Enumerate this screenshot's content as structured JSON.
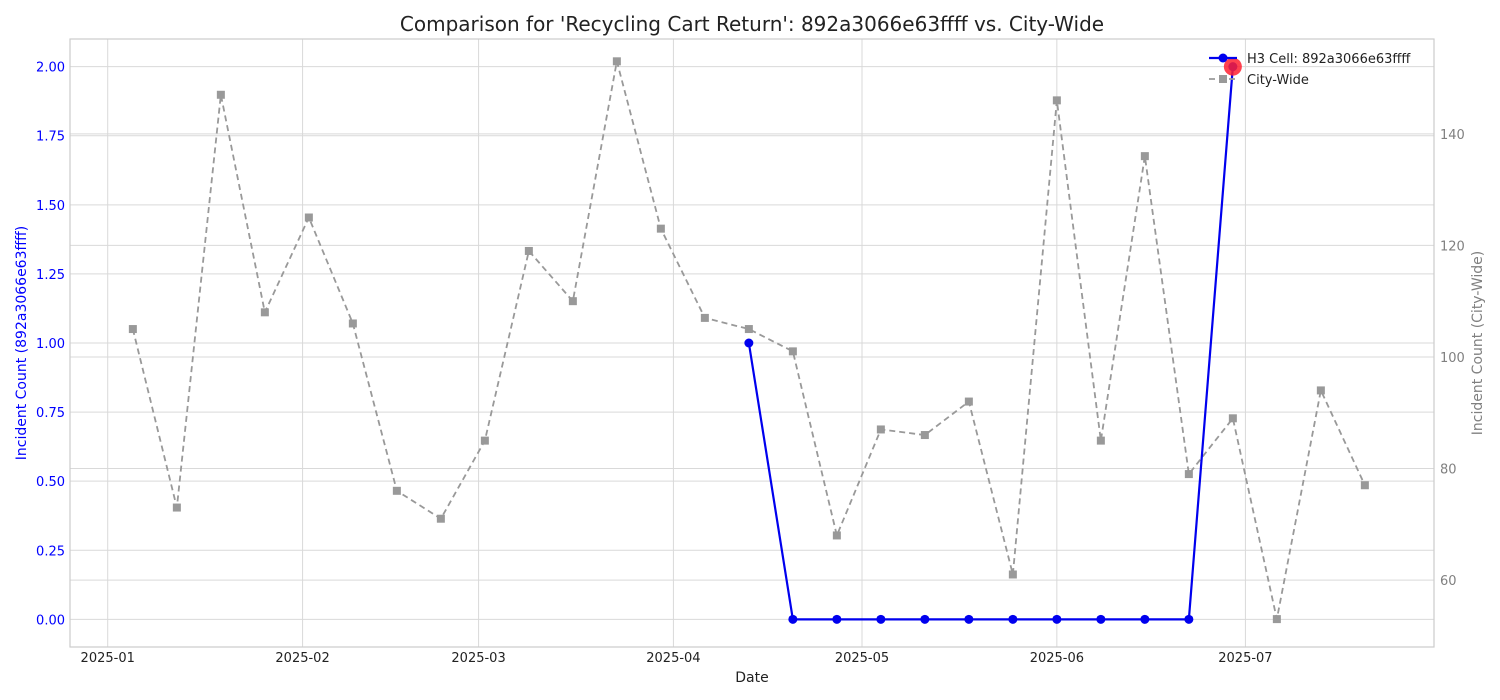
{
  "chart_data": {
    "type": "line",
    "title": "Comparison for 'Recycling Cart Return': 892a3066e63ffff vs. City-Wide",
    "xlabel": "Date",
    "ylabel_left": "Incident Count (892a3066e63ffff)",
    "ylabel_right": "Incident Count (City-Wide)",
    "x_ticks": [
      "2025-01",
      "2025-02",
      "2025-03",
      "2025-04",
      "2025-05",
      "2025-06",
      "2025-07"
    ],
    "x_range": [
      "2024-12-26",
      "2025-07-31"
    ],
    "y_left_range": [
      -0.1,
      2.1
    ],
    "y_left_ticks": [
      "0.00",
      "0.25",
      "0.50",
      "0.75",
      "1.00",
      "1.25",
      "1.50",
      "1.75",
      "2.00"
    ],
    "y_right_range": [
      48,
      157
    ],
    "y_right_ticks": [
      "60",
      "80",
      "100",
      "120",
      "140"
    ],
    "grid": true,
    "legend_position": "top-right",
    "colors": {
      "h3": "#0000ee",
      "city": "#999999",
      "left_axis_text": "#0000ff",
      "right_axis_text": "#808080",
      "highlight": "#ff2030"
    },
    "series": [
      {
        "name": "H3 Cell: 892a3066e63ffff",
        "axis": "left",
        "style": "solid-circle",
        "x": [
          "2025-04-13",
          "2025-04-20",
          "2025-04-27",
          "2025-05-04",
          "2025-05-11",
          "2025-05-18",
          "2025-05-25",
          "2025-06-01",
          "2025-06-08",
          "2025-06-15",
          "2025-06-22",
          "2025-06-29"
        ],
        "values": [
          1,
          0,
          0,
          0,
          0,
          0,
          0,
          0,
          0,
          0,
          0,
          2
        ]
      },
      {
        "name": "City-Wide",
        "axis": "right",
        "style": "dashed-square",
        "x": [
          "2025-01-05",
          "2025-01-12",
          "2025-01-19",
          "2025-01-26",
          "2025-02-02",
          "2025-02-09",
          "2025-02-16",
          "2025-02-23",
          "2025-03-02",
          "2025-03-09",
          "2025-03-16",
          "2025-03-23",
          "2025-03-30",
          "2025-04-06",
          "2025-04-13",
          "2025-04-20",
          "2025-04-27",
          "2025-05-04",
          "2025-05-11",
          "2025-05-18",
          "2025-05-25",
          "2025-06-01",
          "2025-06-08",
          "2025-06-15",
          "2025-06-22",
          "2025-06-29",
          "2025-07-06",
          "2025-07-13",
          "2025-07-20"
        ],
        "values": [
          105,
          73,
          147,
          108,
          125,
          106,
          76,
          71,
          85,
          119,
          110,
          153,
          123,
          107,
          105,
          101,
          68,
          87,
          86,
          92,
          61,
          146,
          85,
          136,
          79,
          89,
          53,
          94,
          77
        ]
      }
    ],
    "highlight": {
      "series": "H3 Cell: 892a3066e63ffff",
      "x": "2025-06-29",
      "value": 2
    }
  }
}
